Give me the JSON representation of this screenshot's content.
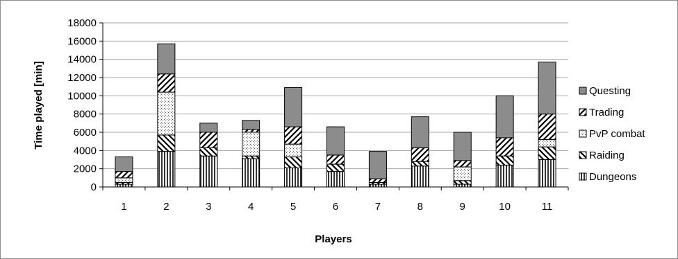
{
  "chart_data": {
    "type": "bar",
    "stacked": true,
    "title": "",
    "xlabel": "Players",
    "ylabel": "Time played [min]",
    "categories": [
      "1",
      "2",
      "3",
      "4",
      "5",
      "6",
      "7",
      "8",
      "9",
      "10",
      "11"
    ],
    "ylim": [
      0,
      18000
    ],
    "yticks": [
      0,
      2000,
      4000,
      6000,
      8000,
      10000,
      12000,
      14000,
      16000,
      18000
    ],
    "grid": true,
    "legend_position": "right",
    "series": [
      {
        "name": "Dungeons",
        "pattern": "vertical-lines",
        "values": [
          300,
          3900,
          3400,
          3100,
          2100,
          1700,
          300,
          2300,
          300,
          2400,
          3000
        ]
      },
      {
        "name": "Raiding",
        "pattern": "backslash-hatch",
        "values": [
          200,
          1800,
          900,
          300,
          1200,
          800,
          200,
          500,
          400,
          1000,
          1400
        ]
      },
      {
        "name": "PvP combat",
        "pattern": "dots",
        "values": [
          500,
          4700,
          0,
          2600,
          1400,
          0,
          0,
          0,
          1500,
          0,
          800
        ]
      },
      {
        "name": "Trading",
        "pattern": "slash-hatch",
        "values": [
          700,
          2000,
          1700,
          300,
          1900,
          1000,
          400,
          1500,
          700,
          2000,
          2800
        ]
      },
      {
        "name": "Questing",
        "pattern": "solid-gray",
        "values": [
          1600,
          3300,
          1000,
          1000,
          4300,
          3100,
          3000,
          3400,
          3100,
          4600,
          5700
        ]
      }
    ],
    "legend_order": [
      "Questing",
      "Trading",
      "PvP combat",
      "Raiding",
      "Dungeons"
    ],
    "colors": {
      "questing": "#8c8c8c",
      "outline": "#000000",
      "grid": "#a6a6a6",
      "frame": "#8c8c8c"
    }
  }
}
